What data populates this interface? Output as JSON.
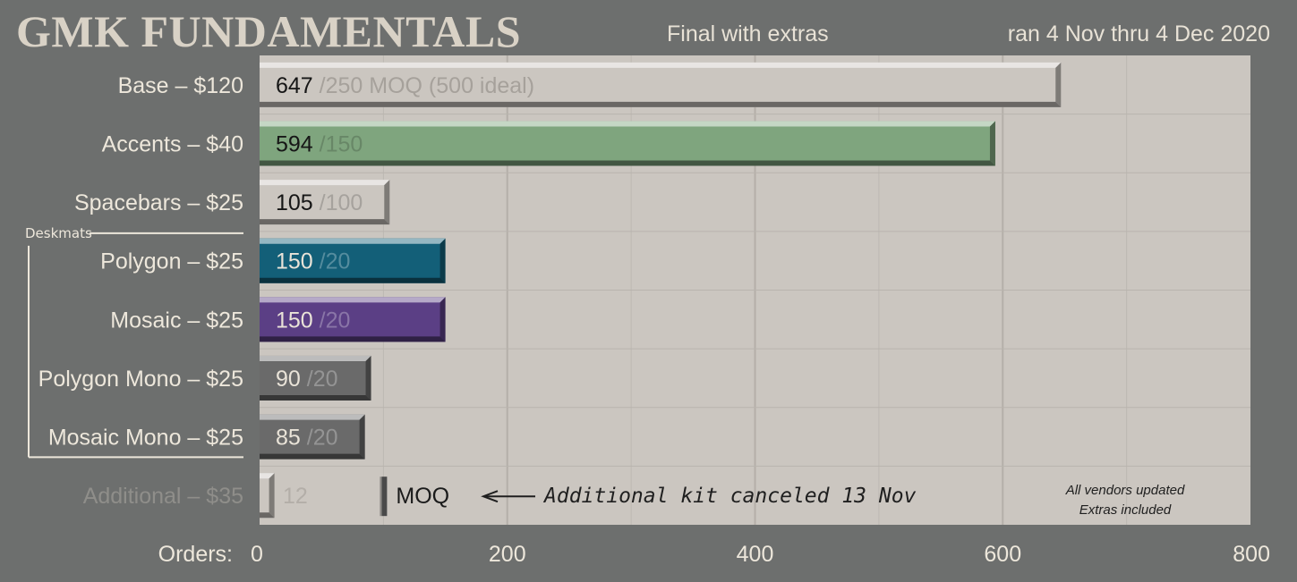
{
  "title": "GMK FUNDAMENTALS",
  "subtitle": "Final with extras",
  "dates": "ran 4 Nov thru 4 Dec 2020",
  "chart_data": {
    "type": "bar",
    "orientation": "horizontal",
    "xlabel": "Orders:",
    "xlim": [
      0,
      800
    ],
    "xticks": [
      0,
      200,
      400,
      600,
      800
    ],
    "grid": true,
    "categories": [
      "Base – $120",
      "Accents – $40",
      "Spacebars – $25",
      "Polygon – $25",
      "Mosaic – $25",
      "Polygon Mono – $25",
      "Mosaic Mono – $25",
      "Additional – $35"
    ],
    "values": [
      647,
      594,
      105,
      150,
      150,
      90,
      85,
      12
    ],
    "moq": [
      250,
      150,
      100,
      20,
      20,
      20,
      20,
      100
    ],
    "moq_labels": [
      "/250 MOQ",
      "/150",
      "/100",
      "/20",
      "/20",
      "/20",
      "/20",
      ""
    ],
    "extra_note": "(500 ideal)",
    "colors": [
      "#cbc6c0",
      "#7fa57e",
      "#cbc6c0",
      "#135f78",
      "#5b3f85",
      "#6a6a6a",
      "#6a6a6a",
      "#cbc6c0"
    ],
    "group_label": "Deskmats",
    "moq_marker_label": "MOQ",
    "annotation": "Additional kit canceled 13 Nov",
    "vendor_note": [
      "All vendors updated",
      "Extras included"
    ]
  }
}
